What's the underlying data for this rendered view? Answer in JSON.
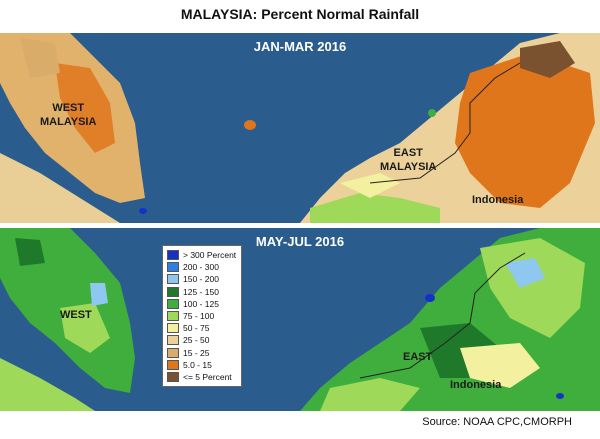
{
  "title": "MALAYSIA:  Percent Normal Rainfall",
  "panels": {
    "top": {
      "label": "JAN-MAR 2016",
      "region_labels": {
        "west": "WEST\nMALAYSIA",
        "east": "EAST\nMALAYSIA",
        "indonesia": "Indonesia"
      }
    },
    "bottom": {
      "label": "MAY-JUL 2016",
      "region_labels": {
        "west": "WEST",
        "east": "EAST",
        "indonesia": "Indonesia"
      }
    }
  },
  "legend": [
    {
      "label": "> 300 Percent",
      "color": "#1630c8"
    },
    {
      "label": "200 - 300",
      "color": "#2f7fe0"
    },
    {
      "label": "150 - 200",
      "color": "#8ec8f0"
    },
    {
      "label": "125 - 150",
      "color": "#1e7a2a"
    },
    {
      "label": "100 - 125",
      "color": "#3fae3c"
    },
    {
      "label": "75 - 100",
      "color": "#9fd95a"
    },
    {
      "label": "50 - 75",
      "color": "#f3f0a0"
    },
    {
      "label": "25 - 50",
      "color": "#ecd29a"
    },
    {
      "label": "15 - 25",
      "color": "#d9ac6a"
    },
    {
      "label": "5.0 - 15",
      "color": "#e0761c"
    },
    {
      "label": "<= 5 Percent",
      "color": "#7a5230"
    }
  ],
  "colors": {
    "ocean": "#2b5c8e",
    "land_out": "#9fd95a"
  },
  "source": "Source: NOAA CPC,CMORPH"
}
